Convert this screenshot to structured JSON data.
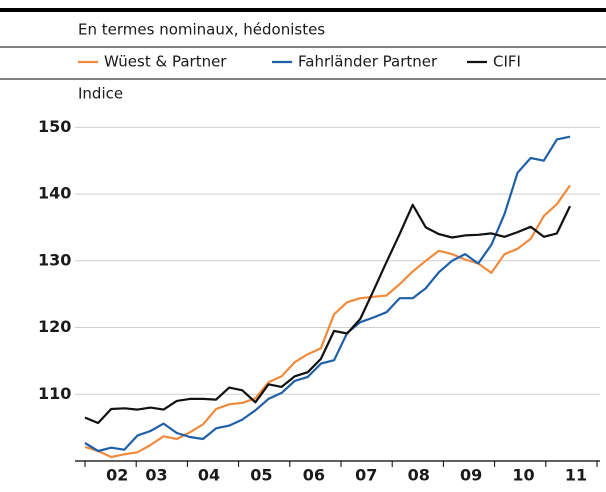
{
  "chart_data": {
    "type": "line",
    "subtitle": "En termes nominaux, hédonistes",
    "y_label": "Indice",
    "categories": [
      null,
      null,
      "02",
      null,
      null,
      "03",
      null,
      null,
      null,
      "04",
      null,
      null,
      null,
      "05",
      null,
      null,
      null,
      "06",
      null,
      null,
      null,
      "07",
      null,
      null,
      null,
      "08",
      null,
      null,
      null,
      "09",
      null,
      null,
      null,
      "10",
      null,
      null,
      null,
      "11"
    ],
    "series": [
      {
        "name": "Wüest & Partner",
        "color": "#f08a3c",
        "values": [
          102.1,
          101.5,
          100.6,
          101.0,
          101.3,
          102.4,
          103.7,
          103.3,
          104.3,
          105.5,
          107.8,
          108.5,
          108.7,
          109.4,
          111.8,
          112.7,
          114.8,
          116.0,
          116.9,
          122.0,
          123.8,
          124.4,
          124.6,
          124.8,
          126.5,
          128.4,
          130.0,
          131.5,
          131.0,
          130.2,
          129.6,
          128.2,
          131.0,
          131.8,
          133.3,
          136.7,
          138.5,
          141.3
        ]
      },
      {
        "name": "Fahrländer Partner",
        "color": "#1f5fa8",
        "values": [
          102.7,
          101.5,
          102.0,
          101.7,
          103.8,
          104.5,
          105.6,
          104.2,
          103.6,
          103.3,
          104.9,
          105.3,
          106.2,
          107.6,
          109.3,
          110.2,
          112.0,
          112.6,
          114.6,
          115.1,
          119.2,
          120.8,
          121.5,
          122.3,
          124.4,
          124.4,
          125.9,
          128.3,
          130.0,
          131.0,
          129.6,
          132.4,
          137.0,
          143.2,
          145.4,
          145.0,
          148.2,
          148.6
        ]
      },
      {
        "name": "CIFI",
        "color": "#111111",
        "values": [
          106.5,
          105.7,
          107.8,
          107.9,
          107.7,
          108.0,
          107.7,
          109.0,
          109.3,
          109.3,
          109.2,
          111.0,
          110.6,
          108.8,
          111.5,
          111.1,
          112.7,
          113.3,
          115.3,
          119.5,
          119.1,
          121.3,
          125.5,
          129.8,
          134.0,
          138.4,
          135.0,
          134.0,
          133.5,
          133.8,
          133.9,
          134.1,
          133.6,
          134.3,
          135.1,
          133.6,
          134.1,
          138.2
        ]
      }
    ],
    "ylim": [
      100,
      152
    ],
    "yticks": [
      110,
      120,
      130,
      140,
      150
    ],
    "grid": true
  }
}
